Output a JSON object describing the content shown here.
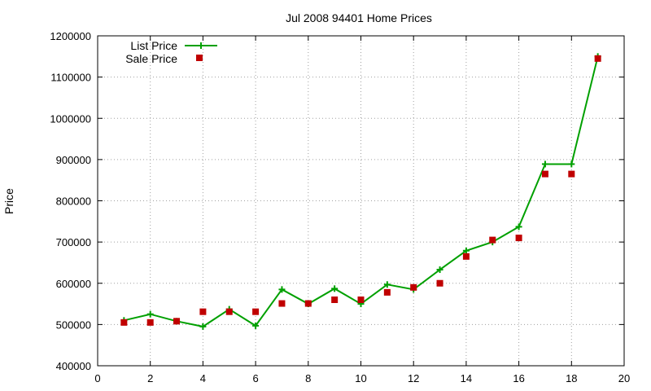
{
  "chart_data": {
    "type": "line",
    "title": "Jul 2008 94401 Home Prices",
    "xlabel": "",
    "ylabel": "Price",
    "xlim": [
      0,
      20
    ],
    "ylim": [
      400000,
      1200000
    ],
    "x_ticks": [
      "0",
      "2",
      "4",
      "6",
      "8",
      "10",
      "12",
      "14",
      "16",
      "18",
      "20"
    ],
    "y_ticks": [
      "400000",
      "500000",
      "600000",
      "700000",
      "800000",
      "900000",
      "1000000",
      "1100000",
      "1200000"
    ],
    "grid": true,
    "legend_position": "top-left",
    "series": [
      {
        "name": "List Price",
        "kind": "line-points",
        "color": "#00a000",
        "x": [
          1,
          2,
          3,
          4,
          5,
          6,
          7,
          8,
          9,
          10,
          11,
          12,
          13,
          14,
          15,
          16,
          17,
          18,
          19
        ],
        "y": [
          510000,
          525000,
          508000,
          495000,
          537000,
          497000,
          585000,
          550000,
          587000,
          550000,
          597000,
          585000,
          633000,
          679000,
          700000,
          737000,
          889000,
          889000,
          1150000
        ]
      },
      {
        "name": "Sale Price",
        "kind": "points",
        "color": "#c00000",
        "x": [
          1,
          2,
          3,
          4,
          5,
          6,
          7,
          8,
          9,
          10,
          11,
          12,
          13,
          14,
          15,
          16,
          17,
          18,
          19
        ],
        "y": [
          505000,
          505000,
          508000,
          531000,
          531000,
          531000,
          551000,
          551000,
          560000,
          560000,
          578000,
          590000,
          600000,
          665000,
          705000,
          710000,
          865000,
          865000,
          1145000
        ]
      }
    ]
  }
}
